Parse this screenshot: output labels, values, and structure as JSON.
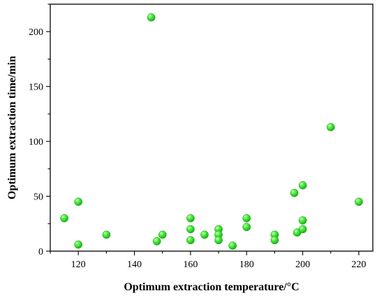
{
  "chart_data": {
    "type": "scatter",
    "title": "",
    "xlabel": "Optimum extraction temperature/°C",
    "ylabel": "Optimum extraction time/min",
    "xlim": [
      110,
      225
    ],
    "ylim": [
      0,
      225
    ],
    "xticks": [
      120,
      140,
      160,
      180,
      200,
      220
    ],
    "yticks": [
      0,
      50,
      100,
      150,
      200
    ],
    "grid": false,
    "legend": "none",
    "marker_color": "#22dd22",
    "marker_highlight": "#d8ffd0",
    "marker_edge": "#0a8a0a",
    "x": [
      115,
      120,
      120,
      130,
      146,
      148,
      150,
      160,
      160,
      160,
      165,
      170,
      170,
      170,
      175,
      180,
      180,
      190,
      190,
      197,
      198,
      200,
      200,
      200,
      210,
      220
    ],
    "y": [
      30,
      45,
      6,
      15,
      213,
      9,
      15,
      30,
      20,
      10,
      15,
      20,
      15,
      10,
      5,
      30,
      22,
      15,
      10,
      53,
      17,
      60,
      28,
      20,
      113,
      45
    ]
  }
}
